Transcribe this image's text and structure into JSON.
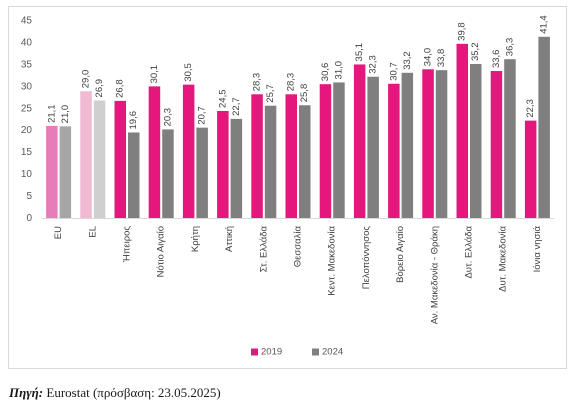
{
  "chart_data": {
    "type": "bar",
    "title": "",
    "xlabel": "",
    "ylabel": "",
    "categories": [
      "EU",
      "EL",
      "Ήπειρος",
      "Νότιο Αιγαίο",
      "Κρήτη",
      "Αττική",
      "Στ. Ελλάδα",
      "Θεσσαλία",
      "Κεντ. Μακεδονία",
      "Πελοπόννησος",
      "Βόρειο Αιγαίο",
      "Αν. Μακεδονία - Θράκη",
      "Δυτ. Ελλάδα",
      "Δυτ. Μακεδονία",
      "Ιόνια νησιά"
    ],
    "series": [
      {
        "name": "2019",
        "color": "#E4177D",
        "point_colors": {
          "EU": "#E67DB8",
          "EL": "#F2B9D3"
        },
        "values": [
          21.1,
          29.0,
          26.8,
          30.1,
          30.5,
          24.5,
          28.3,
          28.3,
          30.6,
          35.1,
          30.7,
          34.0,
          39.8,
          33.6,
          22.3
        ],
        "data_labels": [
          "21,1",
          "29,0",
          "26,8",
          "30,1",
          "30,5",
          "24,5",
          "28,3",
          "28,3",
          "30,6",
          "35,1",
          "30,7",
          "34,0",
          "39,8",
          "33,6",
          "22,3"
        ]
      },
      {
        "name": "2024",
        "color": "#7F7F7F",
        "point_colors": {
          "EU": "#A6A6A6",
          "EL": "#CFCFCF"
        },
        "values": [
          21.0,
          26.9,
          19.6,
          20.3,
          20.7,
          22.7,
          25.7,
          25.8,
          31.0,
          32.3,
          33.2,
          33.8,
          35.2,
          36.3,
          41.4
        ],
        "data_labels": [
          "21,0",
          "26,9",
          "19,6",
          "20,3",
          "20,7",
          "22,7",
          "25,7",
          "25,8",
          "31,0",
          "32,3",
          "33,2",
          "33,8",
          "35,2",
          "36,3",
          "41,4"
        ]
      }
    ],
    "ylim": [
      0,
      45
    ],
    "yticks": [
      0,
      5,
      10,
      15,
      20,
      25,
      30,
      35,
      40,
      45
    ],
    "grid": false,
    "legend": "bottom-center"
  },
  "source": {
    "label": "Πηγή:",
    "text": "Eurostat (πρόσβαση: 23.05.2025)"
  }
}
